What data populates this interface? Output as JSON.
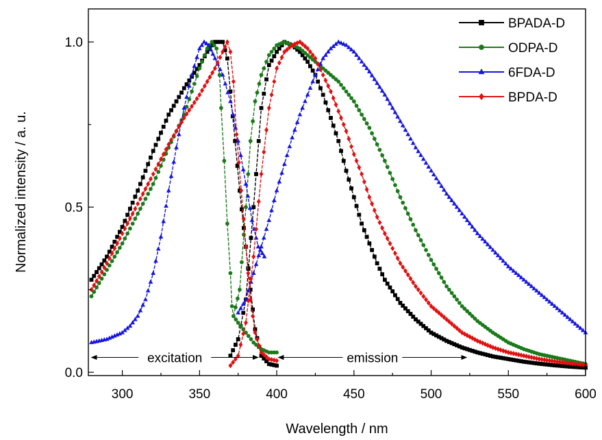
{
  "chart_data": {
    "type": "line",
    "title": "",
    "xlabel": "Wavelength / nm",
    "ylabel": "Normalized intensity / a. u.",
    "xlim": [
      278,
      600
    ],
    "ylim": [
      -0.01,
      1.1
    ],
    "x_ticks": [
      300,
      350,
      400,
      450,
      500,
      550,
      600
    ],
    "x_tick_labels": [
      "300",
      "350",
      "400",
      "450",
      "500",
      "550",
      "600"
    ],
    "y_ticks": [
      0.0,
      0.5,
      1.0
    ],
    "y_tick_labels": [
      "0.0",
      "0.5",
      "1.0"
    ],
    "grid": false,
    "legend_position": "top-right",
    "annotations": [
      {
        "text": "excitation",
        "x_from": 280,
        "x_to": 388,
        "y": 0.045
      },
      {
        "text": "emission",
        "x_from": 401,
        "x_to": 523,
        "y": 0.045
      }
    ],
    "series": [
      {
        "name": "BPADA-D",
        "color": "#000000",
        "marker": "square",
        "excitation": [
          [
            280,
            0.28
          ],
          [
            290,
            0.35
          ],
          [
            300,
            0.44
          ],
          [
            310,
            0.55
          ],
          [
            320,
            0.67
          ],
          [
            330,
            0.78
          ],
          [
            340,
            0.86
          ],
          [
            350,
            0.93
          ],
          [
            355,
            0.97
          ],
          [
            360,
            1.0
          ],
          [
            365,
            1.0
          ],
          [
            368,
            0.95
          ],
          [
            370,
            0.85
          ],
          [
            373,
            0.7
          ],
          [
            376,
            0.55
          ],
          [
            380,
            0.38
          ],
          [
            383,
            0.25
          ],
          [
            386,
            0.13
          ],
          [
            390,
            0.05
          ],
          [
            395,
            0.025
          ],
          [
            400,
            0.02
          ]
        ],
        "emission": [
          [
            370,
            0.05
          ],
          [
            375,
            0.1
          ],
          [
            380,
            0.22
          ],
          [
            385,
            0.5
          ],
          [
            390,
            0.8
          ],
          [
            395,
            0.93
          ],
          [
            400,
            0.97
          ],
          [
            405,
            1.0
          ],
          [
            410,
            0.99
          ],
          [
            415,
            0.97
          ],
          [
            420,
            0.94
          ],
          [
            425,
            0.9
          ],
          [
            430,
            0.84
          ],
          [
            435,
            0.77
          ],
          [
            440,
            0.7
          ],
          [
            445,
            0.61
          ],
          [
            450,
            0.53
          ],
          [
            455,
            0.45
          ],
          [
            460,
            0.39
          ],
          [
            465,
            0.33
          ],
          [
            470,
            0.28
          ],
          [
            480,
            0.21
          ],
          [
            490,
            0.16
          ],
          [
            500,
            0.12
          ],
          [
            510,
            0.095
          ],
          [
            520,
            0.075
          ],
          [
            530,
            0.06
          ],
          [
            540,
            0.048
          ],
          [
            550,
            0.04
          ],
          [
            560,
            0.032
          ],
          [
            570,
            0.026
          ],
          [
            580,
            0.021
          ],
          [
            590,
            0.017
          ],
          [
            600,
            0.014
          ]
        ]
      },
      {
        "name": "ODPA-D",
        "color": "#1a7a1a",
        "marker": "circle",
        "excitation": [
          [
            280,
            0.23
          ],
          [
            290,
            0.31
          ],
          [
            300,
            0.39
          ],
          [
            310,
            0.48
          ],
          [
            320,
            0.57
          ],
          [
            330,
            0.68
          ],
          [
            340,
            0.78
          ],
          [
            345,
            0.85
          ],
          [
            350,
            0.92
          ],
          [
            355,
            0.98
          ],
          [
            358,
            1.0
          ],
          [
            361,
            0.98
          ],
          [
            363,
            0.9
          ],
          [
            364,
            0.8
          ],
          [
            366,
            0.64
          ],
          [
            368,
            0.45
          ],
          [
            370,
            0.3
          ],
          [
            371,
            0.2
          ],
          [
            372,
            0.17
          ],
          [
            375,
            0.15
          ],
          [
            380,
            0.12
          ],
          [
            385,
            0.09
          ],
          [
            390,
            0.07
          ],
          [
            395,
            0.06
          ],
          [
            400,
            0.06
          ]
        ],
        "emission": [
          [
            372,
            0.17
          ],
          [
            376,
            0.25
          ],
          [
            380,
            0.5
          ],
          [
            383,
            0.7
          ],
          [
            386,
            0.82
          ],
          [
            390,
            0.9
          ],
          [
            395,
            0.96
          ],
          [
            400,
            0.99
          ],
          [
            405,
            1.0
          ],
          [
            410,
            0.99
          ],
          [
            415,
            0.98
          ],
          [
            420,
            0.96
          ],
          [
            425,
            0.94
          ],
          [
            430,
            0.92
          ],
          [
            440,
            0.88
          ],
          [
            450,
            0.82
          ],
          [
            460,
            0.74
          ],
          [
            470,
            0.64
          ],
          [
            480,
            0.53
          ],
          [
            490,
            0.43
          ],
          [
            500,
            0.34
          ],
          [
            510,
            0.26
          ],
          [
            520,
            0.2
          ],
          [
            530,
            0.155
          ],
          [
            540,
            0.12
          ],
          [
            550,
            0.09
          ],
          [
            560,
            0.07
          ],
          [
            570,
            0.055
          ],
          [
            580,
            0.045
          ],
          [
            590,
            0.035
          ],
          [
            600,
            0.025
          ]
        ]
      },
      {
        "name": "6FDA-D",
        "color": "#1515e0",
        "marker": "triangle",
        "excitation": [
          [
            280,
            0.09
          ],
          [
            290,
            0.1
          ],
          [
            300,
            0.12
          ],
          [
            305,
            0.14
          ],
          [
            310,
            0.17
          ],
          [
            315,
            0.22
          ],
          [
            320,
            0.3
          ],
          [
            325,
            0.41
          ],
          [
            330,
            0.55
          ],
          [
            335,
            0.68
          ],
          [
            340,
            0.8
          ],
          [
            345,
            0.9
          ],
          [
            350,
            0.98
          ],
          [
            353,
            1.0
          ],
          [
            356,
            0.99
          ],
          [
            360,
            0.95
          ],
          [
            365,
            0.9
          ],
          [
            370,
            0.82
          ],
          [
            375,
            0.7
          ],
          [
            380,
            0.57
          ],
          [
            384,
            0.46
          ],
          [
            388,
            0.38
          ],
          [
            392,
            0.35
          ]
        ],
        "emission": [
          [
            375,
            0.18
          ],
          [
            380,
            0.22
          ],
          [
            385,
            0.3
          ],
          [
            390,
            0.38
          ],
          [
            395,
            0.46
          ],
          [
            400,
            0.55
          ],
          [
            405,
            0.63
          ],
          [
            410,
            0.71
          ],
          [
            415,
            0.78
          ],
          [
            420,
            0.84
          ],
          [
            425,
            0.9
          ],
          [
            430,
            0.95
          ],
          [
            435,
            0.98
          ],
          [
            440,
            1.0
          ],
          [
            445,
            0.99
          ],
          [
            450,
            0.97
          ],
          [
            455,
            0.94
          ],
          [
            460,
            0.91
          ],
          [
            470,
            0.84
          ],
          [
            480,
            0.76
          ],
          [
            490,
            0.68
          ],
          [
            500,
            0.61
          ],
          [
            510,
            0.54
          ],
          [
            520,
            0.48
          ],
          [
            530,
            0.42
          ],
          [
            540,
            0.37
          ],
          [
            550,
            0.32
          ],
          [
            560,
            0.28
          ],
          [
            570,
            0.24
          ],
          [
            580,
            0.2
          ],
          [
            590,
            0.16
          ],
          [
            600,
            0.12
          ]
        ]
      },
      {
        "name": "BPDA-D",
        "color": "#e01010",
        "marker": "diamond",
        "excitation": [
          [
            280,
            0.25
          ],
          [
            290,
            0.33
          ],
          [
            300,
            0.42
          ],
          [
            310,
            0.51
          ],
          [
            320,
            0.6
          ],
          [
            330,
            0.69
          ],
          [
            340,
            0.77
          ],
          [
            350,
            0.84
          ],
          [
            355,
            0.88
          ],
          [
            360,
            0.92
          ],
          [
            365,
            0.97
          ],
          [
            368,
            1.0
          ],
          [
            370,
            0.97
          ],
          [
            372,
            0.88
          ],
          [
            374,
            0.72
          ],
          [
            377,
            0.55
          ],
          [
            380,
            0.38
          ],
          [
            383,
            0.22
          ],
          [
            386,
            0.12
          ],
          [
            390,
            0.06
          ],
          [
            395,
            0.04
          ],
          [
            400,
            0.035
          ]
        ],
        "emission": [
          [
            370,
            0.02
          ],
          [
            375,
            0.05
          ],
          [
            380,
            0.15
          ],
          [
            385,
            0.35
          ],
          [
            390,
            0.6
          ],
          [
            395,
            0.8
          ],
          [
            400,
            0.92
          ],
          [
            405,
            0.97
          ],
          [
            410,
            0.99
          ],
          [
            415,
            1.0
          ],
          [
            420,
            0.98
          ],
          [
            425,
            0.95
          ],
          [
            430,
            0.9
          ],
          [
            435,
            0.85
          ],
          [
            440,
            0.79
          ],
          [
            445,
            0.73
          ],
          [
            450,
            0.66
          ],
          [
            455,
            0.6
          ],
          [
            460,
            0.53
          ],
          [
            465,
            0.47
          ],
          [
            470,
            0.42
          ],
          [
            480,
            0.33
          ],
          [
            490,
            0.26
          ],
          [
            500,
            0.2
          ],
          [
            510,
            0.16
          ],
          [
            520,
            0.12
          ],
          [
            530,
            0.095
          ],
          [
            540,
            0.075
          ],
          [
            550,
            0.06
          ],
          [
            560,
            0.05
          ],
          [
            570,
            0.04
          ],
          [
            580,
            0.033
          ],
          [
            590,
            0.027
          ],
          [
            600,
            0.022
          ]
        ]
      }
    ]
  }
}
